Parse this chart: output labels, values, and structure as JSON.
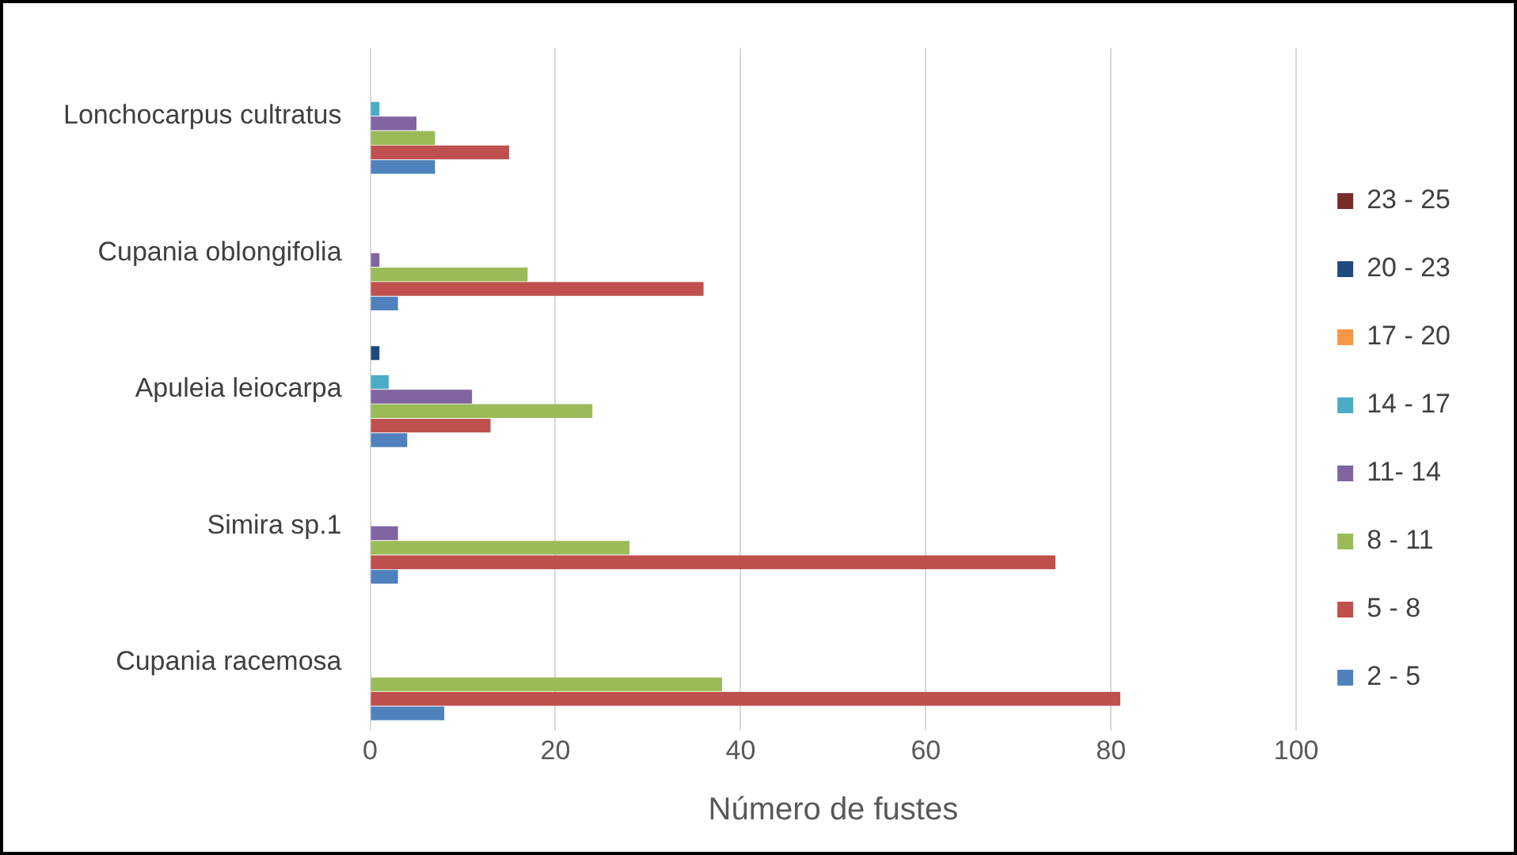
{
  "chart_data": {
    "type": "bar",
    "orientation": "horizontal",
    "xlabel": "Número de fustes",
    "categories": [
      "Lonchocarpus cultratus",
      "Cupania oblongifolia",
      "Apuleia leiocarpa",
      "Simira sp.1",
      "Cupania racemosa"
    ],
    "series": [
      {
        "name": "23 - 25",
        "color": "#772c2a",
        "values": [
          0,
          0,
          0,
          0,
          0
        ]
      },
      {
        "name": "20 - 23",
        "color": "#1f497d",
        "values": [
          0,
          0,
          1,
          0,
          0
        ]
      },
      {
        "name": "17 - 20",
        "color": "#f79646",
        "values": [
          0,
          0,
          0,
          0,
          0
        ]
      },
      {
        "name": "14 - 17",
        "color": "#4bacc6",
        "values": [
          1,
          0,
          2,
          0,
          0
        ]
      },
      {
        "name": "11- 14",
        "color": "#8064a2",
        "values": [
          5,
          1,
          11,
          3,
          0
        ]
      },
      {
        "name": "8 - 11",
        "color": "#9bbb59",
        "values": [
          7,
          17,
          24,
          28,
          38
        ]
      },
      {
        "name": "5 - 8",
        "color": "#c0504d",
        "values": [
          15,
          36,
          13,
          74,
          81
        ]
      },
      {
        "name": "2 - 5",
        "color": "#4f81bd",
        "values": [
          7,
          3,
          4,
          3,
          8
        ]
      }
    ],
    "xlim": [
      0,
      100
    ],
    "xticks": [
      0,
      20,
      40,
      60,
      80,
      100
    ],
    "grid": "x",
    "legend": "right"
  }
}
